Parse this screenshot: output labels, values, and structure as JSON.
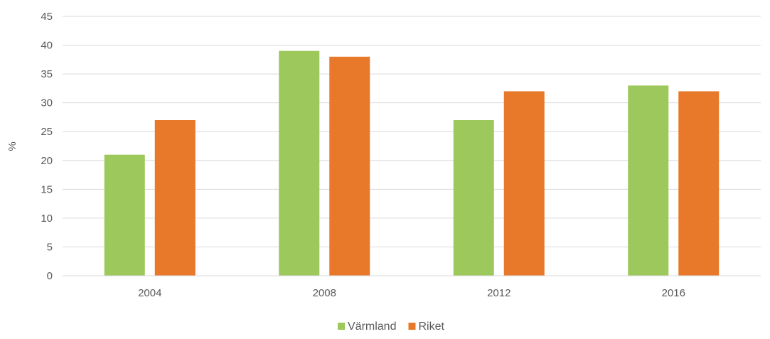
{
  "chart_data": {
    "type": "bar",
    "title": "",
    "xlabel": "",
    "ylabel": "%",
    "ylim": [
      0,
      45
    ],
    "yticks": [
      0,
      5,
      10,
      15,
      20,
      25,
      30,
      35,
      40,
      45
    ],
    "grid": true,
    "legend_position": "bottom",
    "categories": [
      "2004",
      "2008",
      "2012",
      "2016"
    ],
    "series": [
      {
        "name": "Värmland",
        "color": "#9DC85B",
        "values": [
          21,
          39,
          27,
          33
        ]
      },
      {
        "name": "Riket",
        "color": "#E8782A",
        "values": [
          27,
          38,
          32,
          32
        ]
      }
    ]
  }
}
